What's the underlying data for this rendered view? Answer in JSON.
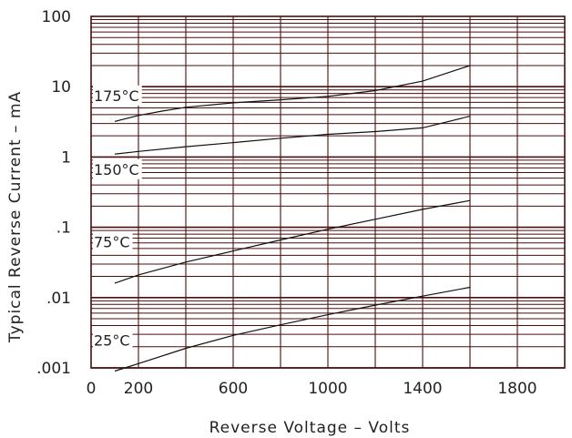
{
  "chart_data": {
    "type": "line",
    "title": "",
    "xlabel": "Reverse Voltage – Volts",
    "ylabel": "Typical Reverse Current – mA",
    "xlim": [
      0,
      2000
    ],
    "ylim": [
      0.001,
      100
    ],
    "yscale": "log",
    "grid": true,
    "grid_color": "#4a0f0f",
    "x_ticks": [
      {
        "value": 0,
        "label": "0"
      },
      {
        "value": 200,
        "label": "200"
      },
      {
        "value": 600,
        "label": "600"
      },
      {
        "value": 1000,
        "label": "1000"
      },
      {
        "value": 1400,
        "label": "1400"
      },
      {
        "value": 1800,
        "label": "1800"
      }
    ],
    "y_ticks": [
      {
        "value": 100,
        "label": "100"
      },
      {
        "value": 10,
        "label": "10"
      },
      {
        "value": 1,
        "label": "1"
      },
      {
        "value": 0.1,
        "label": ".1"
      },
      {
        "value": 0.01,
        "label": ".01"
      },
      {
        "value": 0.001,
        "label": ".001"
      }
    ],
    "series": [
      {
        "name": "175°C",
        "label_x": 0,
        "label_y": 7.5,
        "x": [
          100,
          200,
          300,
          400,
          600,
          800,
          1000,
          1200,
          1400,
          1600
        ],
        "y": [
          3.2,
          3.9,
          4.5,
          5.1,
          5.9,
          6.5,
          7.3,
          8.8,
          12.0,
          20.0
        ]
      },
      {
        "name": "150°C",
        "label_x": 0,
        "label_y": 0.67,
        "x": [
          100,
          200,
          400,
          600,
          800,
          1000,
          1200,
          1400,
          1600
        ],
        "y": [
          1.1,
          1.2,
          1.4,
          1.6,
          1.85,
          2.1,
          2.3,
          2.6,
          3.8
        ]
      },
      {
        "name": "75°C",
        "label_x": 0,
        "label_y": 0.062,
        "x": [
          100,
          200,
          400,
          600,
          800,
          1000,
          1200,
          1400,
          1600
        ],
        "y": [
          0.016,
          0.021,
          0.032,
          0.046,
          0.066,
          0.094,
          0.13,
          0.18,
          0.24
        ]
      },
      {
        "name": "25°C",
        "label_x": 0,
        "label_y": 0.0025,
        "x": [
          100,
          200,
          400,
          600,
          800,
          1000,
          1200,
          1400,
          1600
        ],
        "y": [
          0.0009,
          0.00115,
          0.0019,
          0.0029,
          0.0041,
          0.0057,
          0.0078,
          0.0105,
          0.014
        ]
      }
    ]
  }
}
